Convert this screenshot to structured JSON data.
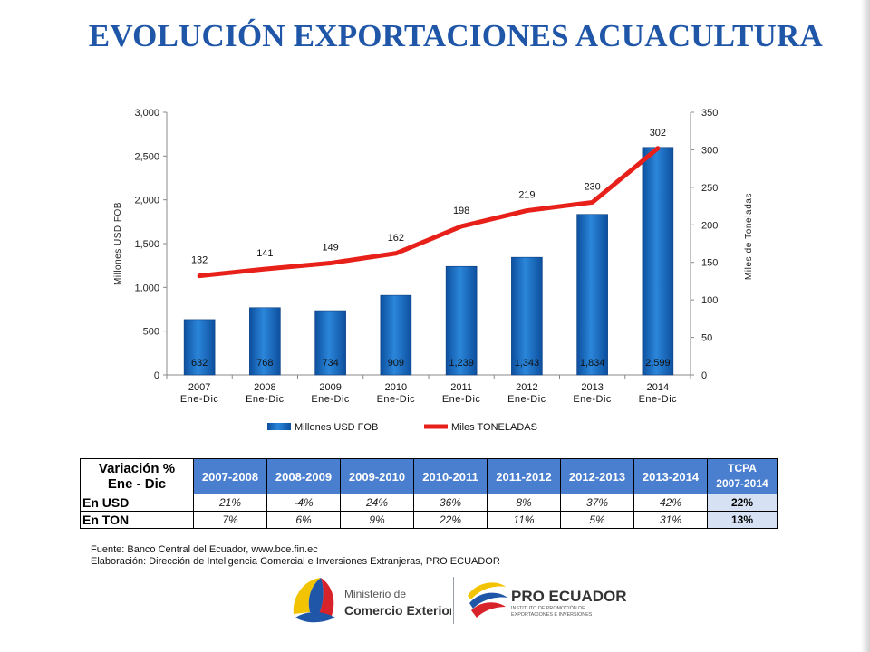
{
  "title": "EVOLUCIÓN EXPORTACIONES ACUACULTURA",
  "chart_data": {
    "type": "bar",
    "categories": [
      "2007\nEne-Dic",
      "2008\nEne-Dic",
      "2009\nEne-Dic",
      "2010\nEne-Dic",
      "2011\nEne-Dic",
      "2012\nEne-Dic",
      "2013\nEne-Dic",
      "2014\nEne-Dic"
    ],
    "series": [
      {
        "name": "Millones USD FOB",
        "kind": "bar",
        "axis": "left",
        "color": "#1f6fc5",
        "values": [
          632,
          768,
          734,
          909,
          1239,
          1343,
          1834,
          2599
        ]
      },
      {
        "name": "Miles TONELADAS",
        "kind": "line",
        "axis": "right",
        "color": "#e8201a",
        "values": [
          132,
          141,
          149,
          162,
          198,
          219,
          230,
          302
        ]
      }
    ],
    "ylabel": "Millones USD FOB",
    "y2label": "Miles de Toneladas",
    "ylim": [
      0,
      3000
    ],
    "y2lim": [
      0,
      350
    ],
    "yticks": [
      "0",
      "500",
      "1,000",
      "1,500",
      "2,000",
      "2,500",
      "3,000"
    ],
    "y2ticks": [
      "0",
      "50",
      "100",
      "150",
      "200",
      "250",
      "300",
      "350"
    ],
    "bar_labels": [
      "632",
      "768",
      "734",
      "909",
      "1,239",
      "1,343",
      "1,834",
      "2,599"
    ],
    "line_labels": [
      "132",
      "141",
      "149",
      "162",
      "198",
      "219",
      "230",
      "302"
    ],
    "legend_position": "bottom",
    "grid": false
  },
  "table": {
    "header_label_1": "Variación %",
    "header_label_2": "Ene - Dic",
    "periods": [
      "2007-2008",
      "2008-2009",
      "2009-2010",
      "2010-2011",
      "2011-2012",
      "2012-2013",
      "2013-2014"
    ],
    "tcpa_1": "TCPA",
    "tcpa_2": "2007-2014",
    "rows": [
      {
        "label": "En USD",
        "values": [
          "21%",
          "-4%",
          "24%",
          "36%",
          "8%",
          "37%",
          "42%"
        ],
        "tcpa": "22%"
      },
      {
        "label": "En TON",
        "values": [
          "7%",
          "6%",
          "9%",
          "22%",
          "11%",
          "5%",
          "31%"
        ],
        "tcpa": "13%"
      }
    ]
  },
  "source": {
    "line1": "Fuente: Banco Central del Ecuador, www.bce.fin.ec",
    "line2": "Elaboración: Dirección de Inteligencia Comercial e Inversiones Extranjeras, PRO ECUADOR"
  },
  "logos": {
    "ministerio_1": "Ministerio de",
    "ministerio_2": "Comercio Exterior",
    "proecuador": "PRO ECUADOR",
    "proecuador_sub_1": "INSTITUTO DE PROMOCIÓN DE",
    "proecuador_sub_2": "EXPORTACIONES E INVERSIONES"
  }
}
